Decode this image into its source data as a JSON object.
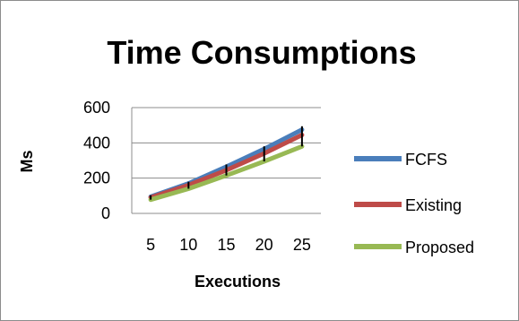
{
  "chart_data": {
    "type": "line",
    "title": "Time Consumptions",
    "xlabel": "Executions",
    "ylabel": "Ms",
    "categories": [
      "5",
      "10",
      "15",
      "20",
      "25"
    ],
    "ylim": [
      0,
      600
    ],
    "yticks": [
      0,
      200,
      400,
      600
    ],
    "grid": true,
    "legend_position": "right",
    "error_bars": true,
    "series": [
      {
        "name": "FCFS",
        "color": "#4a7ebb",
        "values": [
          95,
          170,
          265,
          365,
          475
        ]
      },
      {
        "name": "Existing",
        "color": "#be4b48",
        "values": [
          90,
          160,
          245,
          340,
          445
        ]
      },
      {
        "name": "Proposed",
        "color": "#98b954",
        "values": [
          78,
          140,
          215,
          295,
          380
        ]
      }
    ]
  }
}
